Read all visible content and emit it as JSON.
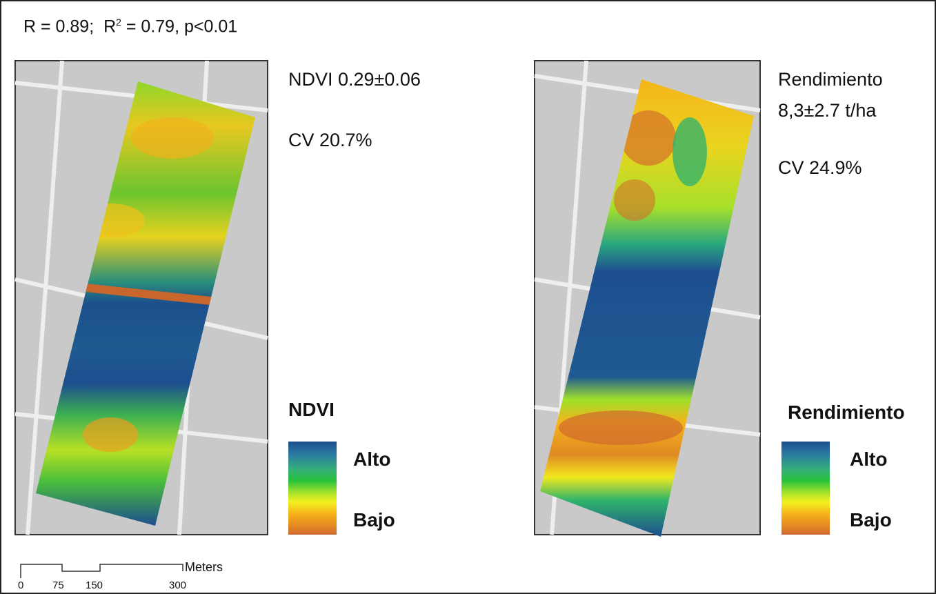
{
  "header": {
    "r": "R = 0.89;",
    "r2_base": "R",
    "r2_sup": "2",
    "r2_rest": "= 0.79, p<0.01"
  },
  "left_panel": {
    "stats": [
      "NDVI 0.29±0.06",
      "CV 20.7%"
    ],
    "legend": {
      "title": "NDVI",
      "high": "Alto",
      "low": "Bajo"
    }
  },
  "right_panel": {
    "stats": [
      "Rendimiento",
      "8,3±2.7 t/ha",
      "CV 24.9%"
    ],
    "legend": {
      "title": "Rendimiento",
      "high": "Alto",
      "low": "Bajo"
    }
  },
  "scale_bar": {
    "labels": [
      "0",
      "75",
      "150",
      "300"
    ],
    "unit": "Meters"
  }
}
